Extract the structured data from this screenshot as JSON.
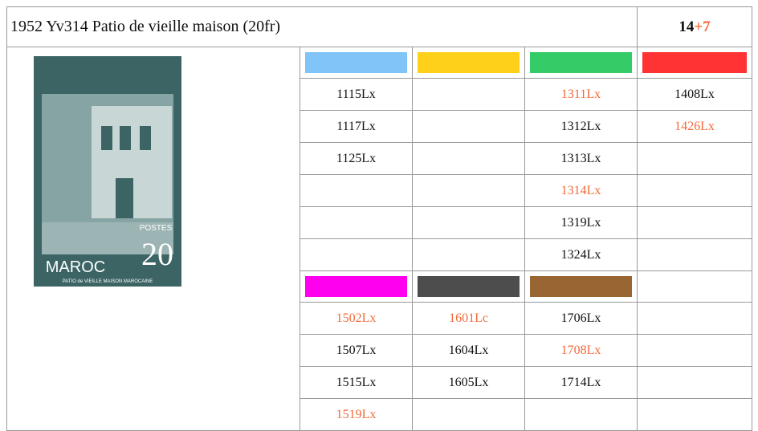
{
  "header": {
    "title": "1952 Yv314 Patio de vieille maison (20fr)",
    "count": "14",
    "extra": "+7"
  },
  "accent_color": "#f26a3a",
  "stamp": {
    "country": "MAROC",
    "label": "POSTES",
    "face": "20",
    "caption": "PATIO de VIEILLE MAISON MAROCAINE"
  },
  "groups": [
    {
      "colors": [
        "#80c4f8",
        "#ffd01a",
        "#33cc66",
        "#ff3333"
      ],
      "rows": [
        [
          {
            "text": "1115Lx"
          },
          null,
          {
            "text": "1311Lx",
            "highlight": true
          },
          {
            "text": "1408Lx"
          }
        ],
        [
          {
            "text": "1117Lx"
          },
          null,
          {
            "text": "1312Lx"
          },
          {
            "text": "1426Lx",
            "highlight": true
          }
        ],
        [
          {
            "text": "1125Lx"
          },
          null,
          {
            "text": "1313Lx"
          },
          null
        ],
        [
          null,
          null,
          {
            "text": "1314Lx",
            "highlight": true
          },
          null
        ],
        [
          null,
          null,
          {
            "text": "1319Lx"
          },
          null
        ],
        [
          null,
          null,
          {
            "text": "1324Lx"
          },
          null
        ]
      ]
    },
    {
      "colors": [
        "#ff00ee",
        "#4d4d4d",
        "#996633",
        null
      ],
      "rows": [
        [
          {
            "text": "1502Lx",
            "highlight": true
          },
          {
            "text": "1601Lc",
            "highlight": true
          },
          {
            "text": "1706Lx"
          },
          null
        ],
        [
          {
            "text": "1507Lx"
          },
          {
            "text": "1604Lx"
          },
          {
            "text": "1708Lx",
            "highlight": true
          },
          null
        ],
        [
          {
            "text": "1515Lx"
          },
          {
            "text": "1605Lx"
          },
          {
            "text": "1714Lx"
          },
          null
        ],
        [
          {
            "text": "1519Lx",
            "highlight": true
          },
          null,
          null,
          null
        ]
      ]
    }
  ]
}
